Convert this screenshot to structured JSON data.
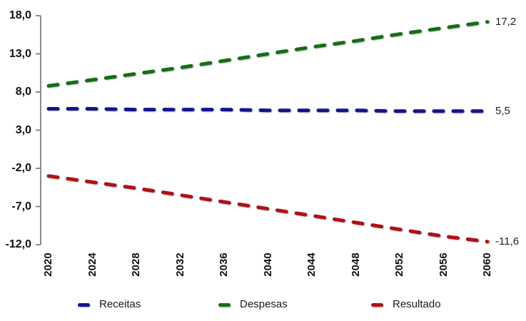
{
  "chart_data": {
    "type": "line",
    "title": "",
    "xlabel": "",
    "ylabel": "",
    "x": [
      2020,
      2024,
      2028,
      2032,
      2036,
      2040,
      2044,
      2048,
      2052,
      2056,
      2060
    ],
    "x_tick_labels": [
      "2020",
      "2024",
      "2028",
      "2032",
      "2036",
      "2040",
      "2044",
      "2048",
      "2052",
      "2056",
      "2060"
    ],
    "y_ticks": [
      18,
      13,
      8,
      3,
      -2,
      -7,
      -12
    ],
    "y_tick_labels": [
      "18,0",
      "13,0",
      "8,0",
      "3,0",
      "-2,0",
      "-7,0",
      "-12,0"
    ],
    "xlim": [
      2020,
      2060
    ],
    "ylim": [
      -12,
      18
    ],
    "grid": false,
    "legend_position": "bottom",
    "decimal_separator": ",",
    "axis_color": "#808080",
    "line_style": "dashed",
    "series": [
      {
        "name": "Receitas",
        "color": "#14148C",
        "values": [
          5.8,
          5.8,
          5.7,
          5.7,
          5.7,
          5.6,
          5.6,
          5.6,
          5.5,
          5.5,
          5.5
        ],
        "end_label": "5,5"
      },
      {
        "name": "Despesas",
        "color": "#156E15",
        "values": [
          8.8,
          9.6,
          10.4,
          11.2,
          12.1,
          13.0,
          13.9,
          14.7,
          15.6,
          16.4,
          17.2
        ],
        "end_label": "17,2"
      },
      {
        "name": "Resultado",
        "color": "#AE1217",
        "values": [
          -3.0,
          -3.8,
          -4.6,
          -5.5,
          -6.4,
          -7.3,
          -8.2,
          -9.1,
          -10.0,
          -10.9,
          -11.6
        ],
        "end_label": "-11,6"
      }
    ]
  }
}
